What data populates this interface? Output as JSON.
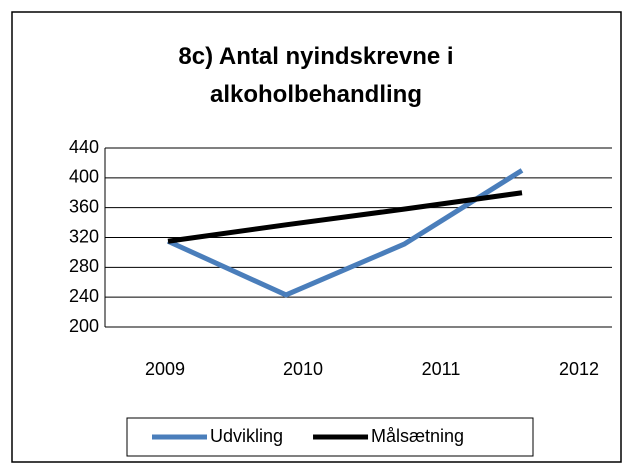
{
  "chart_data": {
    "type": "line",
    "title": "8c) Antal nyindskrevne i alkoholbehandling",
    "categories": [
      "2009",
      "2010",
      "2011",
      "2012"
    ],
    "series": [
      {
        "name": "Udvikling",
        "color": "#4a7ebb",
        "values": [
          315,
          243,
          311,
          410
        ]
      },
      {
        "name": "Målsætning",
        "color": "#000000",
        "values": [
          315,
          337,
          358,
          380
        ]
      }
    ],
    "ylim": [
      200,
      440
    ],
    "yticks": [
      200,
      240,
      280,
      320,
      360,
      400,
      440
    ],
    "grid": true,
    "legend": "bottom"
  }
}
